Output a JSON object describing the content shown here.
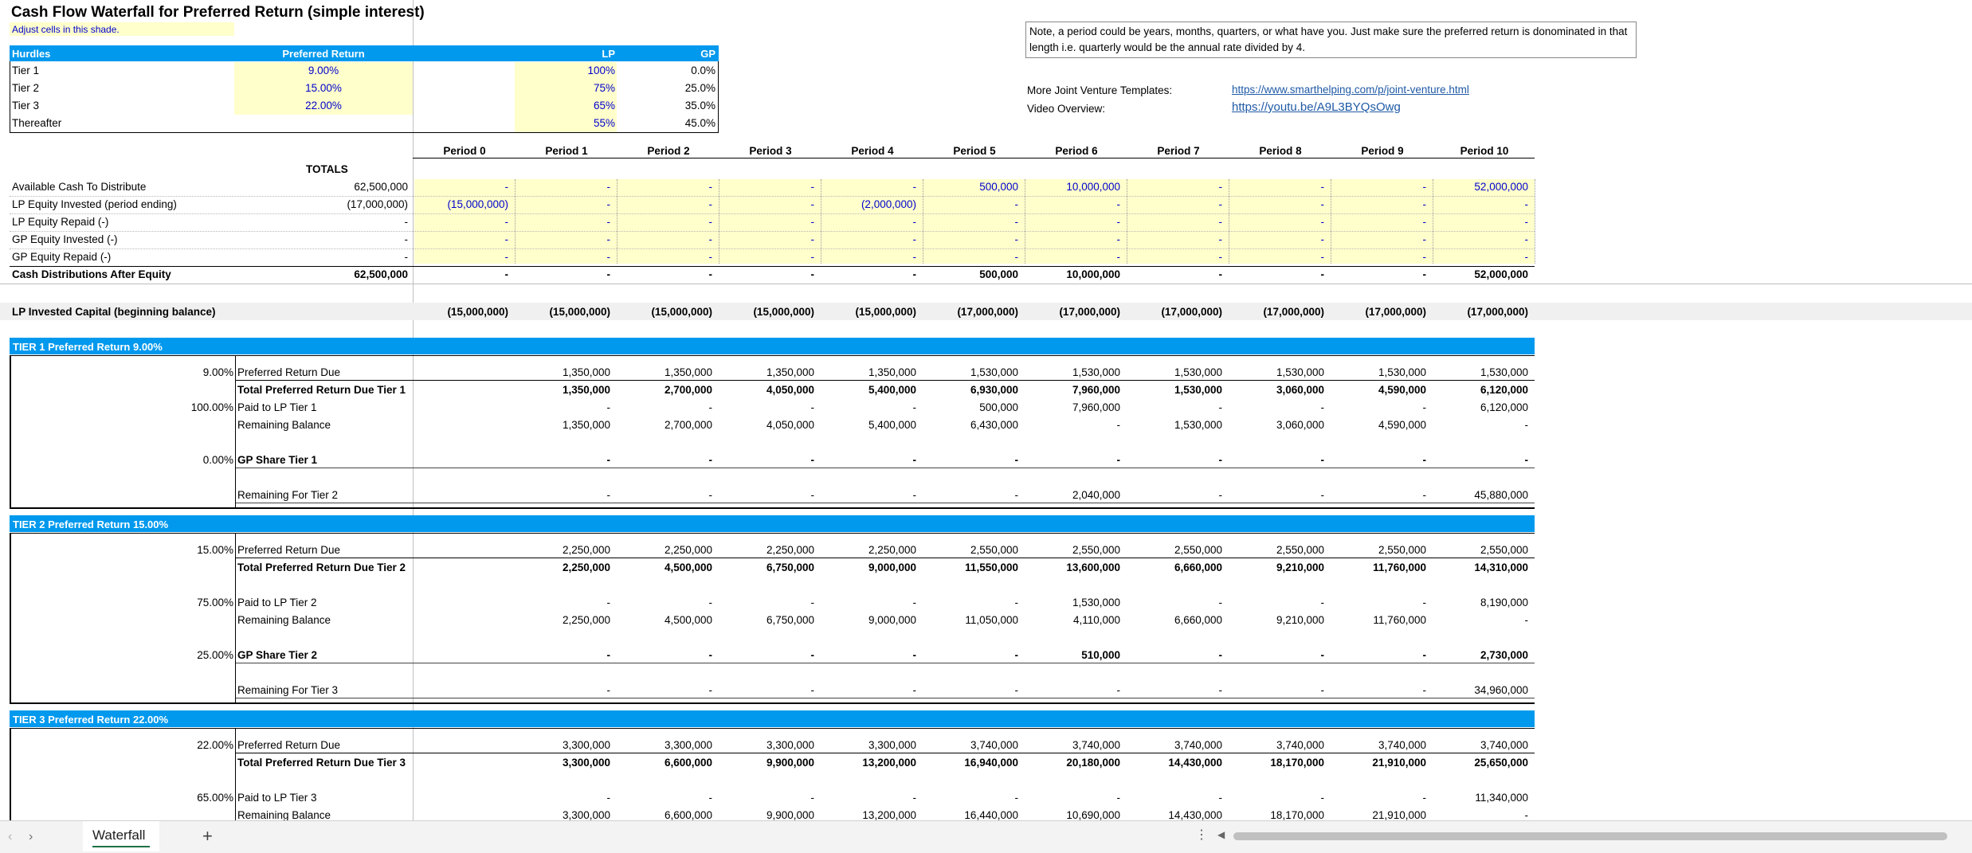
{
  "title": "Cash Flow Waterfall for Preferred Return (simple interest)",
  "adjust_note": "Adjust cells in this shade.",
  "note": "Note, a period could be years, months, quarters, or what have you. Just make sure the preferred return is donominated in that length i.e. quarterly would be the annual rate divided by 4.",
  "links": {
    "templates_label": "More Joint Venture Templates:",
    "templates_url": "https://www.smarthelping.com/p/joint-venture.html",
    "video_label": "Video Overview:",
    "video_url": "https://youtu.be/A9L3BYQsOwg"
  },
  "hurdles": {
    "headers": [
      "Hurdles",
      "Preferred Return",
      "LP",
      "GP"
    ],
    "rows": [
      {
        "name": "Tier 1",
        "pref": "9.00%",
        "lp": "100%",
        "gp": "0.0%"
      },
      {
        "name": "Tier 2",
        "pref": "15.00%",
        "lp": "75%",
        "gp": "25.0%"
      },
      {
        "name": "Tier 3",
        "pref": "22.00%",
        "lp": "65%",
        "gp": "35.0%"
      },
      {
        "name": "Thereafter",
        "pref": "",
        "lp": "55%",
        "gp": "45.0%"
      }
    ]
  },
  "periods": [
    "Period 0",
    "Period 1",
    "Period 2",
    "Period 3",
    "Period 4",
    "Period 5",
    "Period 6",
    "Period 7",
    "Period 8",
    "Period 9",
    "Period 10"
  ],
  "totals_label": "TOTALS",
  "cash_rows": [
    {
      "label": "Available Cash To Distribute",
      "total": "62,500,000",
      "vals": [
        "-",
        "-",
        "-",
        "-",
        "-",
        "500,000",
        "10,000,000",
        "-",
        "-",
        "-",
        "52,000,000"
      ],
      "input": true,
      "bold": false
    },
    {
      "label": "LP Equity Invested (period ending)",
      "total": "(17,000,000)",
      "vals": [
        "(15,000,000)",
        "-",
        "-",
        "-",
        "(2,000,000)",
        "-",
        "-",
        "-",
        "-",
        "-",
        "-"
      ],
      "input": true,
      "bold": false
    },
    {
      "label": "LP Equity Repaid (-)",
      "total": "-",
      "vals": [
        "-",
        "-",
        "-",
        "-",
        "-",
        "-",
        "-",
        "-",
        "-",
        "-",
        "-"
      ],
      "input": true,
      "bold": false
    },
    {
      "label": "GP Equity Invested (-)",
      "total": "-",
      "vals": [
        "-",
        "-",
        "-",
        "-",
        "-",
        "-",
        "-",
        "-",
        "-",
        "-",
        "-"
      ],
      "input": true,
      "bold": false
    },
    {
      "label": "GP Equity Repaid (-)",
      "total": "-",
      "vals": [
        "-",
        "-",
        "-",
        "-",
        "-",
        "-",
        "-",
        "-",
        "-",
        "-",
        "-"
      ],
      "input": true,
      "bold": false
    },
    {
      "label": "Cash Distributions After Equity",
      "total": "62,500,000",
      "vals": [
        "-",
        "-",
        "-",
        "-",
        "-",
        "500,000",
        "10,000,000",
        "-",
        "-",
        "-",
        "52,000,000"
      ],
      "input": false,
      "bold": true
    }
  ],
  "lp_capital": {
    "label": "LP Invested Capital (beginning balance)",
    "vals": [
      "(15,000,000)",
      "(15,000,000)",
      "(15,000,000)",
      "(15,000,000)",
      "(15,000,000)",
      "(17,000,000)",
      "(17,000,000)",
      "(17,000,000)",
      "(17,000,000)",
      "(17,000,000)",
      "(17,000,000)"
    ]
  },
  "tiers": [
    {
      "header": "TIER 1 Preferred Return 9.00%",
      "rows": [
        {
          "pct": "9.00%",
          "label": "Preferred Return Due",
          "bold": false,
          "vals": [
            "",
            "1,350,000",
            "1,350,000",
            "1,350,000",
            "1,350,000",
            "1,530,000",
            "1,530,000",
            "1,530,000",
            "1,530,000",
            "1,530,000",
            "1,530,000"
          ]
        },
        {
          "pct": "",
          "label": "Total Preferred Return Due Tier 1",
          "bold": true,
          "vals": [
            "",
            "1,350,000",
            "2,700,000",
            "4,050,000",
            "5,400,000",
            "6,930,000",
            "7,960,000",
            "1,530,000",
            "3,060,000",
            "4,590,000",
            "6,120,000"
          ]
        },
        {
          "pct": "100.00%",
          "label": "Paid to LP Tier 1",
          "bold": false,
          "vals": [
            "",
            "-",
            "-",
            "-",
            "-",
            "500,000",
            "7,960,000",
            "-",
            "-",
            "-",
            "6,120,000"
          ]
        },
        {
          "pct": "",
          "label": "Remaining Balance",
          "bold": false,
          "vals": [
            "",
            "1,350,000",
            "2,700,000",
            "4,050,000",
            "5,400,000",
            "6,430,000",
            "-",
            "1,530,000",
            "3,060,000",
            "4,590,000",
            "-"
          ]
        },
        {
          "pct": "0.00%",
          "label": "GP Share Tier 1",
          "bold": true,
          "vals": [
            "",
            "-",
            "-",
            "-",
            "-",
            "-",
            "-",
            "-",
            "-",
            "-",
            "-"
          ]
        },
        {
          "pct": "",
          "label": "Remaining For Tier 2",
          "bold": false,
          "vals": [
            "",
            "-",
            "-",
            "-",
            "-",
            "-",
            "2,040,000",
            "-",
            "-",
            "-",
            "45,880,000"
          ]
        }
      ]
    },
    {
      "header": "TIER 2 Preferred Return 15.00%",
      "rows": [
        {
          "pct": "15.00%",
          "label": "Preferred Return Due",
          "bold": false,
          "vals": [
            "",
            "2,250,000",
            "2,250,000",
            "2,250,000",
            "2,250,000",
            "2,550,000",
            "2,550,000",
            "2,550,000",
            "2,550,000",
            "2,550,000",
            "2,550,000"
          ]
        },
        {
          "pct": "",
          "label": "Total Preferred Return Due Tier 2",
          "bold": true,
          "vals": [
            "",
            "2,250,000",
            "4,500,000",
            "6,750,000",
            "9,000,000",
            "11,550,000",
            "13,600,000",
            "6,660,000",
            "9,210,000",
            "11,760,000",
            "14,310,000"
          ]
        },
        {
          "pct": "75.00%",
          "label": "Paid to LP Tier 2",
          "bold": false,
          "vals": [
            "",
            "-",
            "-",
            "-",
            "-",
            "-",
            "1,530,000",
            "-",
            "-",
            "-",
            "8,190,000"
          ]
        },
        {
          "pct": "",
          "label": "Remaining Balance",
          "bold": false,
          "vals": [
            "",
            "2,250,000",
            "4,500,000",
            "6,750,000",
            "9,000,000",
            "11,050,000",
            "4,110,000",
            "6,660,000",
            "9,210,000",
            "11,760,000",
            "-"
          ]
        },
        {
          "pct": "25.00%",
          "label": "GP Share Tier 2",
          "bold": true,
          "vals": [
            "",
            "-",
            "-",
            "-",
            "-",
            "-",
            "510,000",
            "-",
            "-",
            "-",
            "2,730,000"
          ]
        },
        {
          "pct": "",
          "label": "Remaining For Tier 3",
          "bold": false,
          "vals": [
            "",
            "-",
            "-",
            "-",
            "-",
            "-",
            "-",
            "-",
            "-",
            "-",
            "34,960,000"
          ]
        }
      ]
    },
    {
      "header": "TIER 3 Preferred Return 22.00%",
      "rows": [
        {
          "pct": "22.00%",
          "label": "Preferred Return Due",
          "bold": false,
          "vals": [
            "",
            "3,300,000",
            "3,300,000",
            "3,300,000",
            "3,300,000",
            "3,740,000",
            "3,740,000",
            "3,740,000",
            "3,740,000",
            "3,740,000",
            "3,740,000"
          ]
        },
        {
          "pct": "",
          "label": "Total Preferred Return Due Tier 3",
          "bold": true,
          "vals": [
            "",
            "3,300,000",
            "6,600,000",
            "9,900,000",
            "13,200,000",
            "16,940,000",
            "20,180,000",
            "14,430,000",
            "18,170,000",
            "21,910,000",
            "25,650,000"
          ]
        },
        {
          "pct": "65.00%",
          "label": "Paid to LP Tier 3",
          "bold": false,
          "vals": [
            "",
            "-",
            "-",
            "-",
            "-",
            "-",
            "-",
            "-",
            "-",
            "-",
            "11,340,000"
          ]
        },
        {
          "pct": "",
          "label": "Remaining Balance",
          "bold": false,
          "vals": [
            "",
            "3,300,000",
            "6,600,000",
            "9,900,000",
            "13,200,000",
            "16,440,000",
            "10,690,000",
            "14,430,000",
            "18,170,000",
            "21,910,000",
            "-"
          ]
        }
      ]
    }
  ],
  "sheet_tab": "Waterfall",
  "colors": {
    "input_shade": "#ffffcc",
    "header_blue": "#0099ee",
    "input_text": "#0000cc"
  }
}
